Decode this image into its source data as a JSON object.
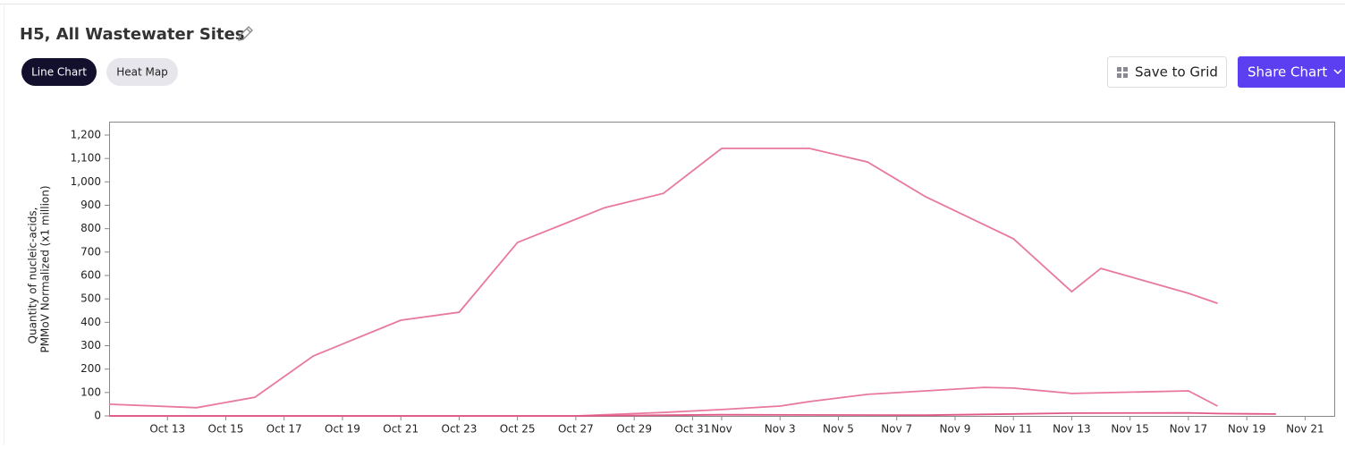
{
  "header": {
    "title": "H5, All Wastewater Sites",
    "tabs": [
      "Line Chart",
      "Heat Map"
    ],
    "buttons": [
      "Save to Grid",
      "Share Chart"
    ]
  },
  "chart_data": {
    "type": "line",
    "y_label": [
      "Quantity of nucleic-acids,",
      "PMMoV Normalized (x1 million)"
    ],
    "xlim": [
      "Oct 11",
      "Nov 22"
    ],
    "xticks": [
      "Oct 13",
      "Oct 15",
      "Oct 17",
      "Oct 19",
      "Oct 21",
      "Oct 23",
      "Oct 25",
      "Oct 27",
      "Oct 29",
      "Oct 31",
      "Nov",
      "Nov 3",
      "Nov 5",
      "Nov 7",
      "Nov 9",
      "Nov 11",
      "Nov 13",
      "Nov 15",
      "Nov 17",
      "Nov 19",
      "Nov 21"
    ],
    "ylim": [
      0,
      1200
    ],
    "yticks": [
      0,
      100,
      200,
      300,
      400,
      500,
      600,
      700,
      800,
      900,
      {
        "value": 1000,
        "label": "1,000"
      },
      {
        "value": 1100,
        "label": "1,100"
      },
      {
        "value": 1200,
        "label": "1,200"
      }
    ],
    "series": [
      {
        "color": "#e8799c",
        "x": [
          "Oct 11",
          "Oct 14",
          "Oct 16",
          "Oct 18",
          "Oct 21",
          "Oct 23",
          "Oct 25",
          "Oct 28",
          "Oct 30",
          "Nov 1",
          "Nov 4",
          "Nov 6",
          "Nov 8",
          "Nov 11",
          "Nov 13",
          "Nov 14",
          "Nov 17",
          "Nov 18"
        ],
        "values": [
          50,
          35,
          80,
          256,
          409,
          443,
          741,
          890,
          951,
          1143,
          1143,
          1085,
          936,
          757,
          531,
          630,
          524,
          481
        ]
      },
      {
        "color": "#e8799c",
        "x": [
          "Oct 11",
          "Oct 27",
          "Oct 29",
          "Oct 30",
          "Nov 1",
          "Nov 3",
          "Nov 4",
          "Nov 6",
          "Nov 8",
          "Nov 10",
          "Nov 11",
          "Nov 13",
          "Nov 17",
          "Nov 18"
        ],
        "values": [
          0,
          0,
          10,
          15,
          27,
          42,
          61,
          92,
          107,
          122,
          119,
          96,
          107,
          42
        ]
      },
      {
        "color": "#e05a85",
        "x": [
          "Oct 11",
          "Oct 27",
          "Nov 1",
          "Nov 8",
          "Nov 13",
          "Nov 17",
          "Nov 18",
          "Nov 20"
        ],
        "values": [
          0,
          0,
          5,
          3,
          12,
          13,
          10,
          8
        ]
      }
    ]
  }
}
